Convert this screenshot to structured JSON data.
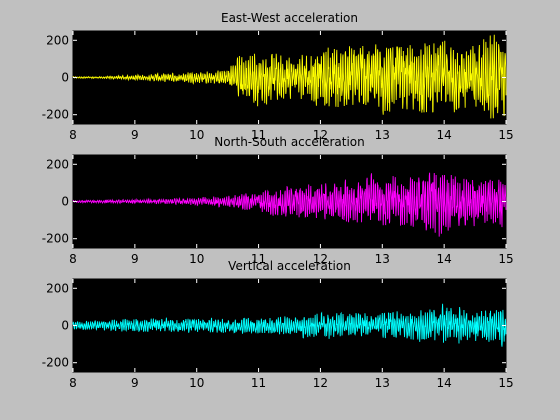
{
  "window": {
    "background": "#c0c0c0"
  },
  "chart_data": [
    {
      "type": "line",
      "title": "East-West acceleration",
      "xlabel": "",
      "ylabel": "",
      "xlim": [
        8,
        15
      ],
      "ylim": [
        -250,
        250
      ],
      "xticks": [
        8,
        9,
        10,
        11,
        12,
        13,
        14,
        15
      ],
      "yticks": [
        -200,
        0,
        200
      ],
      "grid": false,
      "plot_background": "#000000",
      "series": [
        {
          "color": "#ffff00",
          "x": [
            8.0,
            8.5,
            8.85,
            9.2,
            9.5,
            9.8,
            10.1,
            10.5,
            10.65,
            10.8,
            11.0,
            11.3,
            11.6,
            11.8,
            12.1,
            12.4,
            12.7,
            13.0,
            13.2,
            13.5,
            13.8,
            14.0,
            14.3,
            14.6,
            14.8,
            14.95,
            15.0
          ],
          "envelope": [
            4,
            5,
            12,
            16,
            24,
            28,
            32,
            45,
            110,
            140,
            150,
            130,
            120,
            130,
            170,
            170,
            180,
            190,
            200,
            180,
            200,
            190,
            190,
            200,
            230,
            200,
            190
          ]
        }
      ]
    },
    {
      "type": "line",
      "title": "North-South acceleration",
      "xlabel": "",
      "ylabel": "",
      "xlim": [
        8,
        15
      ],
      "ylim": [
        -250,
        250
      ],
      "xticks": [
        8,
        9,
        10,
        11,
        12,
        13,
        14,
        15
      ],
      "yticks": [
        -200,
        0,
        200
      ],
      "grid": false,
      "plot_background": "#000000",
      "series": [
        {
          "color": "#ff00ff",
          "x": [
            8.0,
            8.5,
            9.0,
            9.5,
            10.0,
            10.5,
            10.8,
            11.0,
            11.3,
            11.6,
            11.9,
            12.2,
            12.5,
            12.8,
            13.0,
            13.3,
            13.6,
            13.9,
            14.2,
            14.5,
            14.8,
            15.0
          ],
          "envelope": [
            6,
            8,
            10,
            14,
            20,
            30,
            45,
            55,
            80,
            100,
            90,
            100,
            110,
            130,
            120,
            150,
            130,
            190,
            140,
            120,
            130,
            130
          ]
        }
      ]
    },
    {
      "type": "line",
      "title": "Vertical acceleration",
      "xlabel": "",
      "ylabel": "",
      "xlim": [
        8,
        15
      ],
      "ylim": [
        -250,
        250
      ],
      "xticks": [
        8,
        9,
        10,
        11,
        12,
        13,
        14,
        15
      ],
      "yticks": [
        -200,
        0,
        200
      ],
      "grid": false,
      "plot_background": "#000000",
      "series": [
        {
          "color": "#00ffff",
          "x": [
            8.0,
            8.5,
            9.0,
            9.5,
            10.0,
            10.5,
            11.0,
            11.5,
            12.0,
            12.5,
            13.0,
            13.5,
            13.8,
            14.0,
            14.3,
            14.6,
            14.9,
            15.0
          ],
          "envelope": [
            25,
            28,
            35,
            40,
            38,
            40,
            45,
            55,
            70,
            75,
            70,
            80,
            90,
            110,
            90,
            80,
            100,
            120
          ]
        }
      ]
    }
  ]
}
